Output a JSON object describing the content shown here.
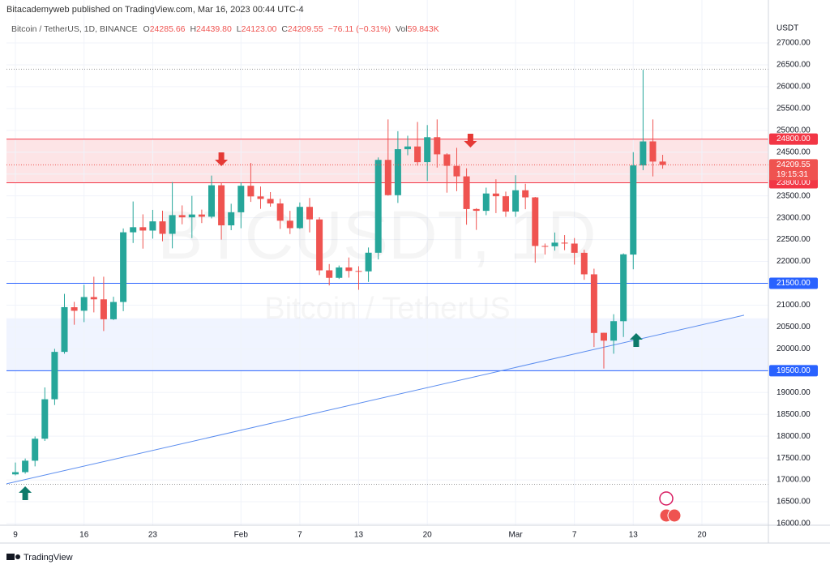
{
  "header": "Bitacademyweb published on TradingView.com, Mar 16, 2023 00:44 UTC-4",
  "footer": "TradingView",
  "chart_data": {
    "type": "candlestick",
    "symbol": "Bitcoin / TetherUS, 1D, BINANCE",
    "legend": [
      {
        "key": "O",
        "value": "24285.66"
      },
      {
        "key": "H",
        "value": "24439.80"
      },
      {
        "key": "L",
        "value": "24123.00"
      },
      {
        "key": "C",
        "value": "24209.55"
      }
    ],
    "change": "−76.11 (−0.31%)",
    "volume_key": "Vol",
    "volume": "59.843K",
    "watermark": "BTCUSDT, 1D",
    "watermark_sub": "Bitcoin / TetherUS",
    "currency": "USDT",
    "countdown": "19:15:31",
    "up_color": "#26a69a",
    "down_color": "#ef5350",
    "x": [
      9,
      10,
      11,
      12,
      13,
      14,
      15,
      16,
      17,
      18,
      19,
      20,
      21,
      22,
      23,
      24,
      25,
      26,
      27,
      28,
      29,
      30,
      31,
      32,
      33,
      34,
      35,
      36,
      37,
      38,
      39,
      40,
      41,
      42,
      43,
      44,
      45,
      46,
      47,
      48,
      49,
      50,
      51,
      52,
      53,
      54,
      55,
      56,
      57,
      58,
      59,
      60,
      61,
      62,
      63,
      64,
      65,
      66,
      67,
      68,
      69,
      70,
      71,
      72,
      73,
      74,
      75
    ],
    "open": [
      17127,
      17178,
      17440,
      17943,
      18846,
      19930,
      20952,
      20872,
      21185,
      21133,
      20677,
      21072,
      22667,
      22783,
      22706,
      22917,
      22632,
      23060,
      23009,
      23074,
      23023,
      23743,
      22826,
      23125,
      23732,
      23488,
      23431,
      23327,
      22932,
      22762,
      23249,
      22961,
      21797,
      21625,
      21862,
      21782,
      21773,
      22199,
      24324,
      23516,
      24568,
      24631,
      24272,
      24843,
      24450,
      24188,
      23947,
      23200,
      23158,
      23554,
      23492,
      23141,
      23629,
      23466,
      22354,
      22347,
      22430,
      22409,
      22198,
      21705,
      20367,
      20187,
      20632,
      22157,
      24197,
      24747,
      24285.66
    ],
    "high": [
      17398,
      17490,
      17995,
      19117,
      20000,
      21258,
      21075,
      21466,
      21650,
      21650,
      21192,
      22755,
      23372,
      23078,
      23180,
      23162,
      23816,
      23282,
      23500,
      23186,
      23965,
      23800,
      23320,
      23812,
      24255,
      23715,
      23587,
      23433,
      23158,
      23350,
      23453,
      23011,
      21940,
      21906,
      22090,
      21890,
      22319,
      24380,
      25250,
      24980,
      24877,
      25192,
      25121,
      25250,
      24476,
      24600,
      24132,
      23219,
      23689,
      23880,
      23598,
      23972,
      23778,
      23476,
      22410,
      22662,
      22603,
      22536,
      22267,
      21834,
      20370,
      20792,
      22185,
      24500,
      26386,
      25250,
      24439.8
    ],
    "low": [
      17104,
      17143,
      17310,
      17892,
      18714,
      19888,
      20551,
      20611,
      20834,
      20407,
      20659,
      20862,
      22422,
      22293,
      22522,
      22462,
      22300,
      22850,
      22534,
      22878,
      22985,
      22500,
      22715,
      22760,
      23363,
      23204,
      23253,
      22745,
      22628,
      22745,
      22665,
      21688,
      21451,
      21599,
      21630,
      21351,
      21532,
      22047,
      23505,
      23339,
      24430,
      24192,
      23840,
      24148,
      23574,
      23608,
      22841,
      22722,
      23059,
      23106,
      23020,
      23020,
      23195,
      21971,
      22157,
      22247,
      22258,
      21927,
      21580,
      20042,
      19549,
      19888,
      20271,
      21819,
      24088,
      23946,
      24123
    ],
    "close": [
      17178,
      17440,
      17943,
      18846,
      19930,
      20954,
      20871,
      21185,
      21133,
      20677,
      21072,
      22667,
      22783,
      22707,
      22917,
      22632,
      23060,
      23009,
      23074,
      23023,
      23743,
      22826,
      23125,
      23732,
      23488,
      23431,
      23327,
      22932,
      22762,
      23249,
      22963,
      21796,
      21625,
      21862,
      21783,
      21773,
      22200,
      24324,
      23517,
      24569,
      24631,
      24271,
      24843,
      24451,
      24188,
      23947,
      23199,
      23158,
      23555,
      23492,
      23141,
      23629,
      23466,
      22354,
      22346,
      22430,
      22410,
      22198,
      21705,
      20363,
      20187,
      20633,
      22163,
      24197,
      24746,
      24285,
      24209.55
    ],
    "xlim": [
      8.09,
      85.78
    ],
    "xticks": [
      9,
      16,
      23,
      {
        "value": 32,
        "label": "Feb"
      },
      {
        "value": 38,
        "label": "7"
      },
      {
        "value": 44,
        "label": "13"
      },
      {
        "value": 51,
        "label": "20"
      },
      {
        "value": 60,
        "label": "Mar"
      },
      {
        "value": 66,
        "label": "7"
      },
      {
        "value": 72,
        "label": "13"
      },
      {
        "value": 79,
        "label": "20"
      }
    ],
    "ylim": [
      15963,
      27575
    ],
    "yticks": [
      {
        "value": 16000,
        "label": "16000.00"
      },
      {
        "value": 16500,
        "label": "16500.00"
      },
      {
        "value": 17000,
        "label": "17000.00"
      },
      {
        "value": 17500,
        "label": "17500.00"
      },
      {
        "value": 18000,
        "label": "18000.00"
      },
      {
        "value": 18500,
        "label": "18500.00"
      },
      {
        "value": 19000,
        "label": "19000.00"
      },
      {
        "value": 19500,
        "label": "19500.00"
      },
      {
        "value": 20000,
        "label": "20000.00"
      },
      {
        "value": 20500,
        "label": "20500.00"
      },
      {
        "value": 21000,
        "label": "21000.00"
      },
      {
        "value": 21500,
        "label": "21500.00"
      },
      {
        "value": 22000,
        "label": "22000.00"
      },
      {
        "value": 22500,
        "label": "22500.00"
      },
      {
        "value": 23000,
        "label": "23000.00"
      },
      {
        "value": 23500,
        "label": "23500.00"
      },
      {
        "value": 24000,
        "label": "24000.00"
      },
      {
        "value": 24500,
        "label": "24500.00"
      },
      {
        "value": 25000,
        "label": "25000.00"
      },
      {
        "value": 25500,
        "label": "25500.00"
      },
      {
        "value": 26000,
        "label": "26000.00"
      },
      {
        "value": 26500,
        "label": "26500.00"
      },
      {
        "value": 27000,
        "label": "27000.00"
      }
    ],
    "grid": true,
    "range_lines": [
      26400,
      16900
    ],
    "levels": [
      {
        "value": 24800,
        "label": "24800.00",
        "color": "#f23645"
      },
      {
        "value": 23800,
        "label": "23800.00",
        "color": "#f23645"
      },
      {
        "value": 21500,
        "label": "21500.00",
        "color": "#2962ff"
      },
      {
        "value": 19500,
        "label": "19500.00",
        "color": "#2962ff"
      }
    ],
    "zones": [
      {
        "from": 23800,
        "to": 24800,
        "color": "#f2364522"
      },
      {
        "from": 19500,
        "to": 20700,
        "color": "#2962ff12"
      }
    ],
    "trendline": {
      "x": [
        8.09,
        83.3
      ],
      "values": [
        16910,
        20770
      ],
      "color": "#5b8def"
    },
    "arrows": [
      {
        "x": 10,
        "value": 16853,
        "direction": "up",
        "color": "#0d7a6a"
      },
      {
        "x": 30,
        "value": 24180,
        "direction": "down",
        "color": "#e53935"
      },
      {
        "x": 55.4,
        "value": 24607,
        "direction": "down",
        "color": "#e53935"
      },
      {
        "x": 72.3,
        "value": 20360,
        "direction": "up",
        "color": "#0d7a6a"
      }
    ]
  }
}
